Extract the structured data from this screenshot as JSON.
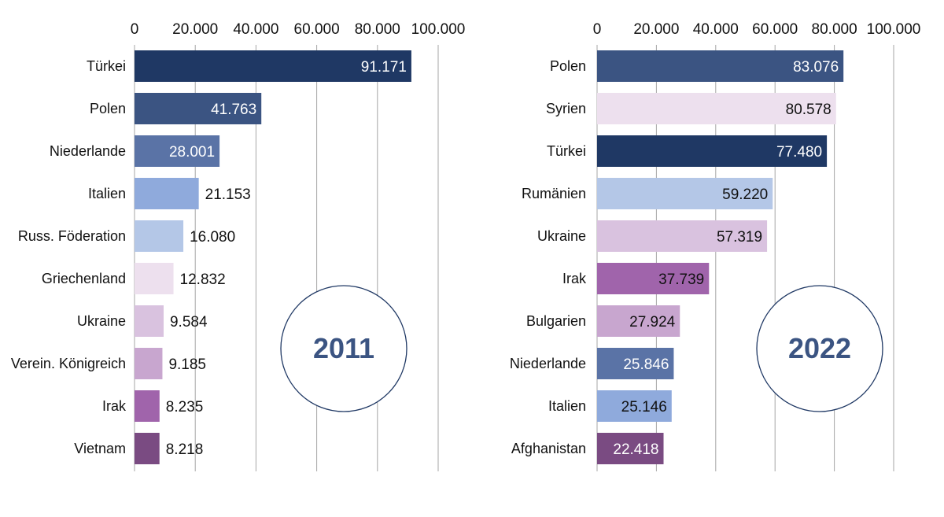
{
  "chart_data": [
    {
      "type": "bar",
      "orientation": "horizontal",
      "title": "",
      "badge": "2011",
      "xlim": [
        0,
        100000
      ],
      "ticks": [
        "0",
        "20.000",
        "40.000",
        "60.000",
        "80.000",
        "100.000"
      ],
      "tick_values": [
        0,
        20000,
        40000,
        60000,
        80000,
        100000
      ],
      "grid": true,
      "categories": [
        "Türkei",
        "Polen",
        "Niederlande",
        "Italien",
        "Russ. Föderation",
        "Griechenland",
        "Ukraine",
        "Verein. Königreich",
        "Irak",
        "Vietnam"
      ],
      "values": [
        91171,
        41763,
        28001,
        21153,
        16080,
        12832,
        9584,
        9185,
        8235,
        8218
      ],
      "value_labels": [
        "91.171",
        "41.763",
        "28.001",
        "21.153",
        "16.080",
        "12.832",
        "9.584",
        "9.185",
        "8.235",
        "8.218"
      ],
      "colors": [
        "#1f3864",
        "#3b5482",
        "#5a73a6",
        "#8faadc",
        "#b4c7e7",
        "#ede0ee",
        "#d9c2df",
        "#c8a6cf",
        "#a064ab",
        "#7a4b82"
      ],
      "label_inside": [
        true,
        true,
        true,
        false,
        false,
        false,
        false,
        false,
        false,
        false
      ],
      "label_color": [
        "#ffffff",
        "#ffffff",
        "#ffffff",
        "#111111",
        "#111111",
        "#111111",
        "#111111",
        "#111111",
        "#111111",
        "#111111"
      ]
    },
    {
      "type": "bar",
      "orientation": "horizontal",
      "title": "",
      "badge": "2022",
      "xlim": [
        0,
        100000
      ],
      "ticks": [
        "0",
        "20.000",
        "40.000",
        "60.000",
        "80.000",
        "100.000"
      ],
      "tick_values": [
        0,
        20000,
        40000,
        60000,
        80000,
        100000
      ],
      "grid": true,
      "categories": [
        "Polen",
        "Syrien",
        "Türkei",
        "Rumänien",
        "Ukraine",
        "Irak",
        "Bulgarien",
        "Niederlande",
        "Italien",
        "Afghanistan"
      ],
      "values": [
        83076,
        80578,
        77480,
        59220,
        57319,
        37739,
        27924,
        25846,
        25146,
        22418
      ],
      "value_labels": [
        "83.076",
        "80.578",
        "77.480",
        "59.220",
        "57.319",
        "37.739",
        "27.924",
        "25.846",
        "25.146",
        "22.418"
      ],
      "colors": [
        "#3b5482",
        "#ede0ee",
        "#1f3864",
        "#b4c7e7",
        "#d9c2df",
        "#a064ab",
        "#c8a6cf",
        "#5a73a6",
        "#8faadc",
        "#7a4b82"
      ],
      "label_inside": [
        true,
        true,
        true,
        true,
        true,
        true,
        true,
        true,
        true,
        true
      ],
      "label_color": [
        "#ffffff",
        "#111111",
        "#ffffff",
        "#111111",
        "#111111",
        "#111111",
        "#111111",
        "#ffffff",
        "#111111",
        "#ffffff"
      ]
    }
  ]
}
